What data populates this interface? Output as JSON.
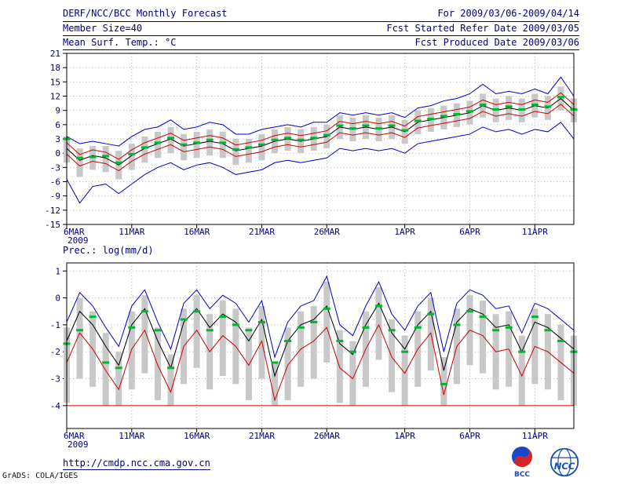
{
  "header": {
    "line1_left": "DERF/NCC/BCC Monthly Forecast",
    "line1_right": "For 2009/03/06-2009/04/14",
    "line2_left": "Member Size=40",
    "line2_right": "Fcst Started Refer Date 2009/03/05",
    "line3_left": "Mean Surf. Temp.: °C",
    "line3_right": "Fcst Produced Date 2009/03/06"
  },
  "footer": {
    "url": "http://cmdp.ncc.cma.gov.cn",
    "grads_credit": "GrADS: COLA/IGES",
    "logos": [
      {
        "name": "bcc-logo",
        "label": "BCC"
      },
      {
        "name": "ncc-logo",
        "label": "NCC"
      }
    ]
  },
  "colors": {
    "accent_navy": "#000080",
    "line_blue": "#0000cc",
    "line_red": "#cc0000",
    "line_black": "#000000",
    "marker_green": "#00b830",
    "bar_gray": "#c8c8c8",
    "grid_gray": "#b5b5b5"
  },
  "chart_data": [
    {
      "type": "line",
      "title": "Mean Surf. Temp.: °C",
      "ylabel": "°C",
      "ylim": [
        -15,
        21
      ],
      "yticks": [
        -15,
        -12,
        -9,
        -6,
        -3,
        0,
        3,
        6,
        9,
        12,
        15,
        18,
        21
      ],
      "n_points": 40,
      "x_start_date": "6MAR",
      "x_year_label": "2009",
      "x_tick_indices": [
        0,
        5,
        10,
        15,
        20,
        26,
        31,
        36
      ],
      "x_tick_labels": [
        "6MAR",
        "11MAR",
        "16MAR",
        "21MAR",
        "26MAR",
        "1APR",
        "6APR",
        "11APR"
      ],
      "grid": true,
      "series": [
        {
          "name": "ensemble-max",
          "color": "#0000cc",
          "values": [
            3.5,
            2.0,
            2.5,
            2.0,
            1.5,
            3.5,
            5.0,
            5.5,
            7.0,
            5.0,
            5.5,
            6.5,
            6.0,
            4.0,
            4.0,
            5.0,
            5.5,
            6.0,
            5.5,
            6.5,
            6.5,
            8.5,
            8.0,
            8.5,
            8.0,
            8.5,
            7.5,
            9.5,
            10.0,
            11.0,
            11.5,
            12.5,
            14.5,
            12.5,
            13.0,
            12.5,
            13.5,
            12.5,
            16.0,
            12.0
          ]
        },
        {
          "name": "upper-spread",
          "color": "#cc0000",
          "values": [
            2.2,
            -0.3,
            0.7,
            0.2,
            -1.3,
            0.7,
            2.2,
            3.2,
            4.2,
            2.7,
            3.2,
            3.7,
            3.2,
            1.7,
            2.2,
            2.7,
            3.7,
            4.2,
            3.7,
            4.2,
            4.7,
            6.7,
            6.2,
            6.7,
            6.2,
            6.7,
            5.7,
            7.7,
            8.2,
            8.7,
            9.2,
            9.7,
            11.2,
            10.2,
            10.7,
            10.2,
            11.2,
            10.7,
            12.7,
            10.2
          ]
        },
        {
          "name": "ensemble-mean",
          "color": "#000000",
          "values": [
            1.0,
            -1.5,
            -0.5,
            -1.0,
            -2.5,
            -0.5,
            1.0,
            2.0,
            3.0,
            1.5,
            2.0,
            2.5,
            2.0,
            0.5,
            1.0,
            1.5,
            2.5,
            3.0,
            2.5,
            3.0,
            3.5,
            5.5,
            5.0,
            5.5,
            5.0,
            5.5,
            4.5,
            6.5,
            7.0,
            7.5,
            8.0,
            8.5,
            10.0,
            9.0,
            9.5,
            9.0,
            10.0,
            9.5,
            11.5,
            9.0
          ]
        },
        {
          "name": "lower-spread",
          "color": "#cc0000",
          "values": [
            -0.2,
            -2.7,
            -1.7,
            -2.2,
            -3.7,
            -1.7,
            -0.2,
            0.8,
            1.8,
            0.3,
            0.8,
            1.3,
            0.8,
            -0.7,
            -0.2,
            0.3,
            1.3,
            1.8,
            1.3,
            1.8,
            2.3,
            4.3,
            3.8,
            4.3,
            3.8,
            4.3,
            3.3,
            5.3,
            5.8,
            6.3,
            6.8,
            7.3,
            8.8,
            7.8,
            8.3,
            7.8,
            8.8,
            8.3,
            10.3,
            7.8
          ]
        },
        {
          "name": "ensemble-min",
          "color": "#0000cc",
          "values": [
            -5.5,
            -10.5,
            -7.0,
            -6.5,
            -8.5,
            -6.5,
            -4.5,
            -3.0,
            -2.0,
            -3.5,
            -2.5,
            -2.0,
            -3.0,
            -4.5,
            -4.0,
            -3.5,
            -2.0,
            -1.5,
            -2.0,
            -1.5,
            -1.0,
            1.0,
            0.5,
            1.0,
            0.5,
            1.0,
            0.0,
            2.0,
            2.5,
            3.0,
            3.5,
            4.0,
            5.5,
            4.5,
            5.0,
            4.0,
            5.0,
            4.5,
            6.5,
            3.0
          ]
        }
      ],
      "median_markers": {
        "name": "median",
        "color": "#00b830",
        "values": [
          3.0,
          -1.0,
          -0.8,
          -0.6,
          -2.0,
          -0.2,
          1.2,
          2.2,
          3.2,
          1.8,
          2.2,
          2.8,
          2.2,
          0.8,
          1.2,
          1.8,
          2.8,
          3.2,
          2.8,
          3.2,
          3.8,
          5.8,
          5.2,
          5.8,
          5.2,
          5.8,
          4.8,
          6.8,
          7.2,
          7.8,
          8.2,
          8.8,
          10.2,
          9.2,
          9.8,
          9.2,
          10.2,
          9.8,
          11.8,
          9.2
        ]
      },
      "bars": {
        "name": "ensemble-spread-bar",
        "color": "#c8c8c8",
        "top": [
          3.5,
          1.0,
          1.5,
          1.5,
          0.5,
          2.0,
          3.5,
          4.5,
          5.5,
          4.0,
          4.5,
          5.0,
          4.5,
          3.0,
          3.0,
          4.0,
          5.0,
          5.5,
          5.0,
          5.5,
          6.0,
          8.0,
          7.5,
          8.0,
          7.5,
          8.0,
          7.0,
          9.0,
          9.5,
          10.0,
          10.5,
          11.0,
          12.5,
          11.5,
          12.0,
          11.5,
          12.5,
          12.0,
          14.0,
          11.5
        ],
        "bottom": [
          -2.0,
          -5.0,
          -3.5,
          -4.0,
          -5.5,
          -3.5,
          -2.0,
          -1.0,
          0.0,
          -1.5,
          -1.0,
          -0.5,
          -1.0,
          -2.5,
          -2.0,
          -1.5,
          0.0,
          0.5,
          0.0,
          0.5,
          1.0,
          3.0,
          2.5,
          3.0,
          2.5,
          3.0,
          2.0,
          4.0,
          4.5,
          5.0,
          5.5,
          6.0,
          7.5,
          6.5,
          7.0,
          6.5,
          7.5,
          7.0,
          9.0,
          6.5
        ]
      }
    },
    {
      "type": "line",
      "title": "Prec.: log(mm/d)",
      "ylabel": "log(mm/d)",
      "ylim": [
        -4.85,
        1.3
      ],
      "yticks": [
        -4,
        -3,
        -2,
        -1,
        0,
        1
      ],
      "n_points": 40,
      "x_start_date": "6MAR",
      "x_year_label": "2009",
      "x_tick_indices": [
        0,
        5,
        10,
        15,
        20,
        26,
        31,
        36
      ],
      "x_tick_labels": [
        "6MAR",
        "11MAR",
        "16MAR",
        "21MAR",
        "26MAR",
        "1APR",
        "6APR",
        "11APR"
      ],
      "grid": true,
      "flat_lines": [
        {
          "name": "dry-floor",
          "y": -4,
          "color": "#cc0000"
        }
      ],
      "series": [
        {
          "name": "ensemble-max",
          "color": "#0000cc",
          "values": [
            -0.9,
            0.2,
            -0.3,
            -1.1,
            -1.8,
            -0.3,
            0.3,
            -0.9,
            -1.9,
            -0.2,
            0.3,
            -0.4,
            0.1,
            -0.2,
            -0.9,
            -0.1,
            -2.2,
            -0.9,
            -0.3,
            -0.1,
            0.8,
            -1.0,
            -1.4,
            -0.3,
            0.6,
            -0.6,
            -1.2,
            -0.3,
            0.2,
            -2.0,
            -0.2,
            0.3,
            0.1,
            -0.4,
            -0.3,
            -1.3,
            -0.2,
            -0.4,
            -0.8,
            -1.2
          ]
        },
        {
          "name": "ensemble-mean",
          "color": "#000000",
          "values": [
            -1.6,
            -0.5,
            -1.0,
            -1.8,
            -2.5,
            -1.0,
            -0.4,
            -1.6,
            -2.6,
            -0.9,
            -0.4,
            -1.1,
            -0.6,
            -0.9,
            -1.6,
            -0.8,
            -2.9,
            -1.6,
            -1.0,
            -0.8,
            -0.3,
            -1.7,
            -2.1,
            -1.0,
            -0.2,
            -1.3,
            -1.9,
            -1.0,
            -0.5,
            -2.7,
            -0.9,
            -0.4,
            -0.6,
            -1.1,
            -1.0,
            -2.0,
            -0.9,
            -1.1,
            -1.5,
            -1.9
          ]
        },
        {
          "name": "lower-spread",
          "color": "#cc0000",
          "values": [
            -2.4,
            -1.3,
            -1.9,
            -2.7,
            -3.4,
            -1.9,
            -1.2,
            -2.5,
            -3.5,
            -1.8,
            -1.2,
            -2.0,
            -1.4,
            -1.8,
            -2.5,
            -1.6,
            -3.8,
            -2.5,
            -1.9,
            -1.6,
            -1.1,
            -2.6,
            -3.0,
            -1.9,
            -1.0,
            -2.2,
            -2.8,
            -1.9,
            -1.3,
            -3.6,
            -1.8,
            -1.2,
            -1.4,
            -2.0,
            -1.9,
            -2.9,
            -1.8,
            -2.0,
            -2.4,
            -2.8
          ]
        }
      ],
      "median_markers": {
        "name": "median",
        "color": "#00b830",
        "values": [
          -1.7,
          -1.2,
          -0.7,
          -2.4,
          -2.6,
          -1.1,
          -0.5,
          -1.2,
          -2.6,
          -0.8,
          -0.5,
          -1.2,
          -0.7,
          -1.0,
          -1.2,
          -0.9,
          -2.4,
          -1.6,
          -1.1,
          -0.9,
          -0.4,
          -1.6,
          -2.0,
          -1.1,
          -0.3,
          -1.2,
          -2.0,
          -1.1,
          -0.6,
          -3.2,
          -1.0,
          -0.5,
          -0.7,
          -1.2,
          -1.1,
          -2.0,
          -0.7,
          -1.2,
          -1.6,
          -2.0
        ]
      },
      "bars": {
        "name": "ensemble-spread-bar",
        "color": "#c8c8c8",
        "top": [
          -1.1,
          0.0,
          -0.5,
          -1.3,
          -2.0,
          -0.5,
          0.1,
          -1.1,
          -2.1,
          -0.4,
          0.1,
          -0.6,
          -0.1,
          -0.4,
          -1.1,
          -0.3,
          -2.4,
          -1.1,
          -0.5,
          -0.3,
          0.6,
          -1.2,
          -1.6,
          -0.5,
          0.4,
          -0.8,
          -1.4,
          -0.5,
          0.0,
          -2.2,
          -0.4,
          0.1,
          -0.1,
          -0.6,
          -0.5,
          -1.4,
          -0.4,
          -0.6,
          -1.0,
          -1.4
        ],
        "bottom": [
          -3.9,
          -3.0,
          -3.3,
          -4.0,
          -4.0,
          -3.4,
          -2.8,
          -3.8,
          -4.0,
          -3.2,
          -2.6,
          -3.4,
          -2.9,
          -3.2,
          -3.8,
          -3.0,
          -4.0,
          -3.8,
          -3.3,
          -3.0,
          -2.4,
          -3.9,
          -4.0,
          -3.3,
          -2.3,
          -3.5,
          -4.0,
          -3.3,
          -2.7,
          -4.0,
          -3.2,
          -2.5,
          -2.8,
          -3.4,
          -3.3,
          -4.0,
          -3.2,
          -3.4,
          -3.8,
          -4.0
        ]
      }
    }
  ]
}
